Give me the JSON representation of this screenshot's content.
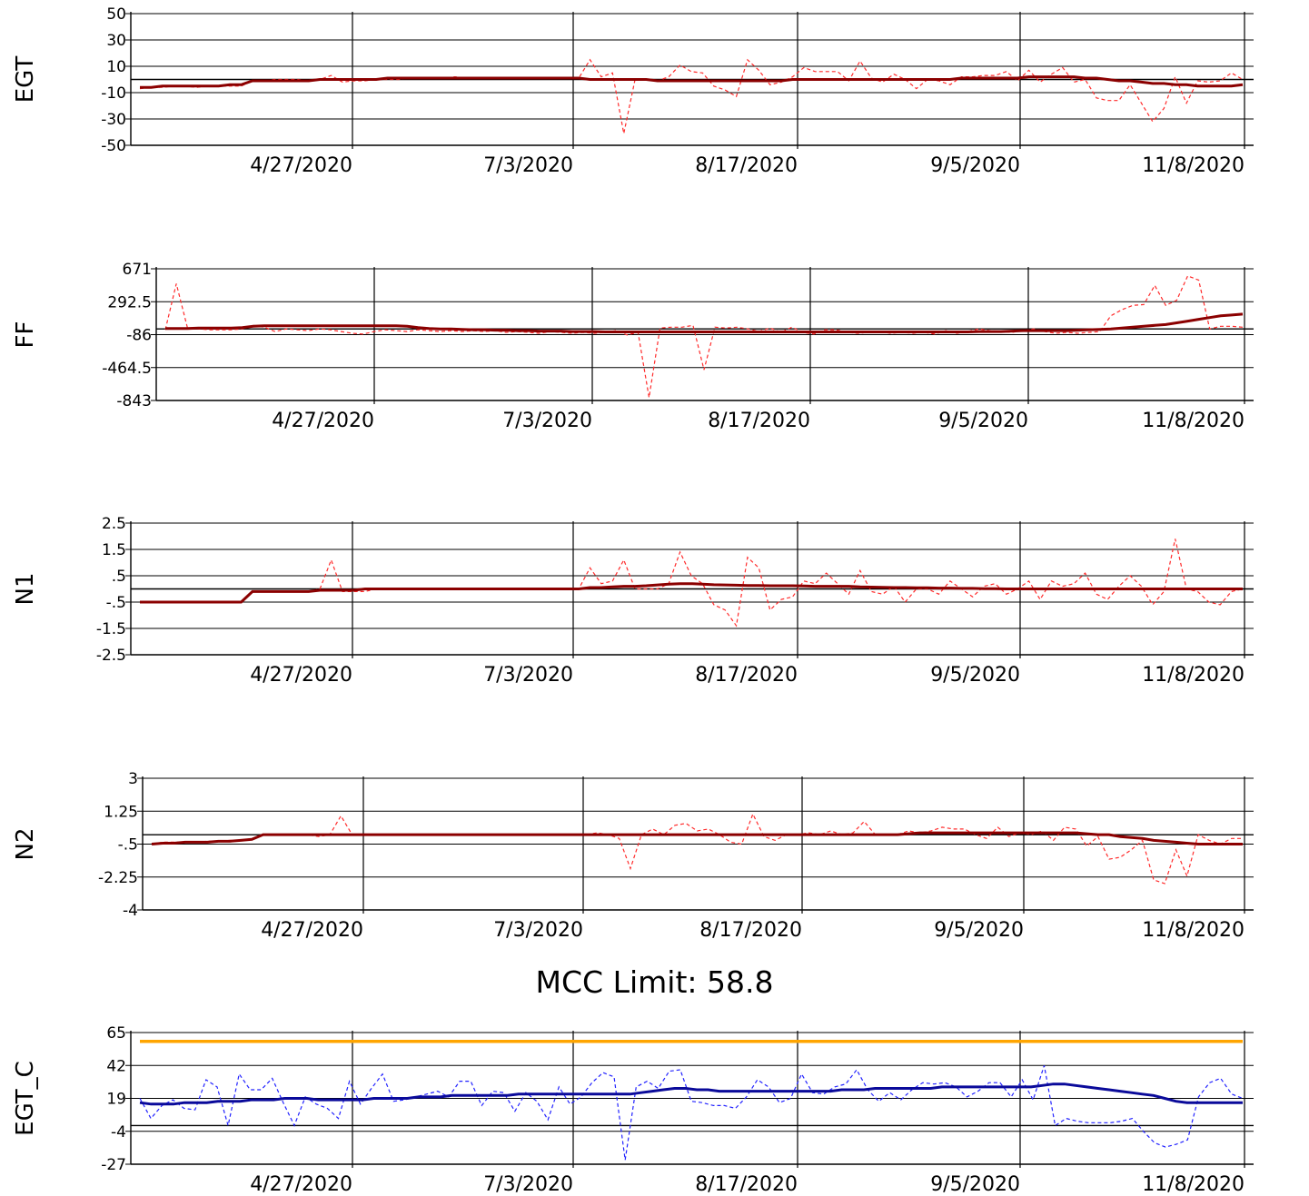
{
  "colors": {
    "raw": "#ff2b2b",
    "smooth": "#8b0000",
    "egtc_raw": "#2222ff",
    "egtc_smooth": "#0a0a9a",
    "limit": "#ffa500",
    "grid": "#000000"
  },
  "mcc_title": "MCC Limit: 58.8",
  "chart_data": [
    {
      "type": "line",
      "ylabel": "EGT",
      "ylim": [
        -50,
        50
      ],
      "yticks": [
        "50",
        "30",
        "10",
        "-10",
        "-30",
        "-50"
      ],
      "xticks": [
        "4/27/2020",
        "7/3/2020",
        "8/17/2020",
        "9/5/2020",
        "11/8/2020"
      ],
      "extra_hlines": [
        0
      ],
      "series": [
        {
          "role": "raw",
          "values": [
            -7,
            -6,
            -6,
            -5,
            -5,
            -6,
            -5,
            -5,
            -5,
            -5,
            -1,
            -1,
            0,
            0,
            0,
            -1,
            0,
            3,
            -2,
            -1,
            -1,
            0,
            0,
            0,
            1,
            1,
            1,
            1,
            2,
            1,
            1,
            1,
            1,
            1,
            1,
            1,
            1,
            1,
            1,
            1,
            15,
            2,
            5,
            -41,
            0,
            0,
            -1,
            2,
            11,
            6,
            5,
            -5,
            -8,
            -13,
            15,
            7,
            -4,
            -2,
            2,
            9,
            6,
            6,
            6,
            -1,
            14,
            1,
            -2,
            4,
            0,
            -7,
            0,
            -1,
            -4,
            2,
            2,
            3,
            3,
            6,
            -1,
            7,
            -2,
            4,
            9,
            -2,
            0,
            -14,
            -16,
            -16,
            -4,
            -18,
            -32,
            -22,
            2,
            -18,
            -1,
            -2,
            -1,
            5,
            0
          ]
        },
        {
          "role": "smooth",
          "values": [
            -6,
            -6,
            -5,
            -5,
            -5,
            -5,
            -5,
            -5,
            -4,
            -4,
            -1,
            -1,
            -1,
            -1,
            -1,
            -1,
            0,
            0,
            0,
            0,
            0,
            0,
            1,
            1,
            1,
            1,
            1,
            1,
            1,
            1,
            1,
            1,
            1,
            1,
            1,
            1,
            1,
            1,
            1,
            1,
            0,
            0,
            0,
            0,
            0,
            0,
            -1,
            -1,
            -1,
            -1,
            -1,
            -1,
            -1,
            -1,
            -1,
            -1,
            -1,
            -1,
            0,
            0,
            0,
            0,
            0,
            0,
            0,
            0,
            0,
            0,
            0,
            0,
            0,
            0,
            0,
            1,
            1,
            1,
            1,
            1,
            1,
            2,
            2,
            2,
            2,
            2,
            1,
            1,
            0,
            -1,
            -1,
            -2,
            -3,
            -3,
            -4,
            -4,
            -5,
            -5,
            -5,
            -5,
            -4
          ]
        }
      ]
    },
    {
      "type": "line",
      "ylabel": "FF",
      "ylim": [
        -843,
        671
      ],
      "yticks": [
        "671",
        "292.5",
        "-86",
        "-464.5",
        "-843"
      ],
      "xticks": [
        "4/27/2020",
        "7/3/2020",
        "8/17/2020",
        "9/5/2020",
        "11/8/2020"
      ],
      "extra_hlines": [
        -20
      ],
      "series": [
        {
          "role": "raw",
          "values": [
            -30,
            500,
            0,
            -20,
            -30,
            -30,
            -30,
            -20,
            20,
            0,
            -50,
            -20,
            -30,
            -40,
            -20,
            -30,
            -50,
            -70,
            -80,
            -50,
            -30,
            -40,
            -50,
            -30,
            -40,
            -50,
            -40,
            -50,
            -40,
            -50,
            -40,
            -60,
            -50,
            -60,
            -70,
            -50,
            -60,
            -70,
            -60,
            -70,
            -60,
            -40,
            -90,
            -60,
            -810,
            -10,
            0,
            0,
            20,
            -490,
            0,
            -10,
            0,
            -20,
            -50,
            -10,
            -60,
            0,
            -60,
            -80,
            -30,
            -30,
            -60,
            -70,
            -60,
            -50,
            -70,
            -60,
            -70,
            -60,
            -80,
            -40,
            -70,
            -50,
            -20,
            -40,
            -50,
            -60,
            -40,
            -20,
            -50,
            -70,
            -60,
            -70,
            -60,
            -50,
            130,
            200,
            250,
            260,
            480,
            250,
            310,
            590,
            540,
            -20,
            10,
            10,
            0
          ]
        },
        {
          "role": "smooth",
          "values": [
            -15,
            -15,
            -15,
            -10,
            -10,
            -10,
            -10,
            -5,
            10,
            15,
            15,
            15,
            15,
            15,
            15,
            15,
            15,
            15,
            15,
            15,
            15,
            15,
            10,
            -5,
            -15,
            -20,
            -20,
            -25,
            -30,
            -30,
            -35,
            -35,
            -40,
            -40,
            -45,
            -45,
            -45,
            -50,
            -50,
            -50,
            -55,
            -55,
            -55,
            -55,
            -55,
            -55,
            -55,
            -55,
            -55,
            -55,
            -55,
            -55,
            -55,
            -55,
            -55,
            -55,
            -55,
            -55,
            -55,
            -55,
            -55,
            -55,
            -55,
            -55,
            -55,
            -55,
            -55,
            -55,
            -55,
            -55,
            -55,
            -55,
            -55,
            -55,
            -50,
            -50,
            -50,
            -45,
            -40,
            -40,
            -40,
            -40,
            -40,
            -35,
            -30,
            -25,
            -20,
            -10,
            0,
            10,
            20,
            30,
            50,
            70,
            90,
            110,
            130,
            140,
            150
          ]
        }
      ]
    },
    {
      "type": "line",
      "ylabel": "N1",
      "ylim": [
        -2.5,
        2.5
      ],
      "yticks": [
        "2.5",
        "1.5",
        ".5",
        "-.5",
        "-1.5",
        "-2.5"
      ],
      "xticks": [
        "4/27/2020",
        "7/3/2020",
        "8/17/2020",
        "9/5/2020",
        "11/8/2020"
      ],
      "extra_hlines": [
        0
      ],
      "series": [
        {
          "role": "raw",
          "values": [
            -0.5,
            -0.5,
            -0.5,
            -0.5,
            -0.5,
            -0.5,
            -0.5,
            -0.5,
            -0.5,
            -0.5,
            -0.1,
            -0.1,
            -0.1,
            -0.1,
            -0.1,
            -0.1,
            0,
            1.1,
            -0.1,
            -0.1,
            -0.1,
            0,
            0,
            0,
            0,
            0,
            0,
            0,
            0,
            0,
            0,
            0,
            0,
            0,
            0,
            0,
            0,
            0,
            0,
            0,
            0.8,
            0.2,
            0.3,
            1.1,
            0,
            0,
            0,
            0.2,
            1.4,
            0.5,
            0.2,
            -0.6,
            -0.8,
            -1.4,
            1.2,
            0.8,
            -0.8,
            -0.4,
            -0.3,
            0.3,
            0.2,
            0.6,
            0.2,
            -0.2,
            0.7,
            -0.1,
            -0.2,
            0.1,
            -0.5,
            0,
            0,
            -0.2,
            0.3,
            0,
            -0.3,
            0.1,
            0.2,
            -0.2,
            0,
            0.3,
            -0.4,
            0.3,
            0.1,
            0.2,
            0.6,
            -0.2,
            -0.4,
            0.1,
            0.5,
            0.1,
            -0.6,
            -0.1,
            1.9,
            0,
            -0.1,
            -0.5,
            -0.6,
            -0.1,
            0
          ]
        },
        {
          "role": "smooth",
          "values": [
            -0.5,
            -0.5,
            -0.5,
            -0.5,
            -0.5,
            -0.5,
            -0.5,
            -0.5,
            -0.5,
            -0.5,
            -0.1,
            -0.1,
            -0.1,
            -0.1,
            -0.1,
            -0.1,
            -0.05,
            -0.05,
            -0.05,
            -0.05,
            0,
            0,
            0,
            0,
            0,
            0,
            0,
            0,
            0,
            0,
            0,
            0,
            0,
            0,
            0,
            0,
            0,
            0,
            0,
            0,
            0.05,
            0.05,
            0.08,
            0.1,
            0.1,
            0.12,
            0.15,
            0.18,
            0.2,
            0.2,
            0.18,
            0.16,
            0.15,
            0.14,
            0.13,
            0.13,
            0.12,
            0.12,
            0.12,
            0.11,
            0.1,
            0.1,
            0.1,
            0.1,
            0.08,
            0.07,
            0.06,
            0.05,
            0.05,
            0.04,
            0.04,
            0.03,
            0.03,
            0.02,
            0.02,
            0.01,
            0.01,
            0,
            0,
            0,
            0,
            0,
            0,
            0,
            0,
            0,
            0,
            0,
            0,
            0,
            0,
            0,
            0,
            0,
            0,
            0,
            0,
            0,
            0
          ]
        }
      ]
    },
    {
      "type": "line",
      "ylabel": "N2",
      "ylim": [
        -4,
        3
      ],
      "yticks": [
        "3",
        "1.25",
        "-.5",
        "-2.25",
        "-4"
      ],
      "xticks": [
        "4/27/2020",
        "7/3/2020",
        "8/17/2020",
        "9/5/2020",
        "11/8/2020"
      ],
      "extra_hlines": [
        0
      ],
      "series": [
        {
          "role": "raw",
          "values": [
            -0.5,
            -0.4,
            -0.4,
            -0.4,
            -0.4,
            -0.35,
            -0.35,
            -0.3,
            -0.3,
            -0.2,
            0,
            0,
            0,
            0,
            0,
            -0.1,
            0,
            1.0,
            0,
            0,
            0,
            0,
            0,
            0,
            0,
            0,
            0,
            0,
            0,
            0,
            0,
            0,
            0,
            0,
            0,
            0,
            0,
            0,
            0,
            0,
            0.1,
            0,
            -0.2,
            -1.8,
            0,
            0.3,
            0,
            0.5,
            0.6,
            0.2,
            0.3,
            0,
            -0.4,
            -0.5,
            1.1,
            -0.1,
            -0.3,
            0,
            0,
            0.1,
            0,
            0.2,
            0,
            0.1,
            0.7,
            0,
            0,
            0,
            0.2,
            0.1,
            0.2,
            0.4,
            0.3,
            0.3,
            0,
            -0.2,
            0.4,
            -0.1,
            0.1,
            0,
            0.2,
            -0.3,
            0.4,
            0.3,
            -0.6,
            -0.1,
            -1.3,
            -1.2,
            -0.8,
            -0.3,
            -2.4,
            -2.6,
            -0.8,
            -2.2,
            0,
            -0.3,
            -0.5,
            -0.2,
            -0.2
          ]
        },
        {
          "role": "smooth",
          "values": [
            -0.5,
            -0.45,
            -0.45,
            -0.4,
            -0.4,
            -0.4,
            -0.35,
            -0.35,
            -0.3,
            -0.25,
            0,
            0,
            0,
            0,
            0,
            0,
            0,
            0,
            0,
            0,
            0,
            0,
            0,
            0,
            0,
            0,
            0,
            0,
            0,
            0,
            0,
            0,
            0,
            0,
            0,
            0,
            0,
            0,
            0,
            0,
            0,
            0,
            0,
            0,
            0,
            0,
            0,
            0,
            0,
            0,
            0,
            0,
            0,
            0,
            0,
            0,
            0,
            0,
            0,
            0,
            0,
            0,
            0,
            0,
            0,
            0,
            0,
            0,
            0.05,
            0.1,
            0.1,
            0.1,
            0.1,
            0.1,
            0.1,
            0.1,
            0.1,
            0.1,
            0.1,
            0.1,
            0.1,
            0.1,
            0.1,
            0.1,
            0.05,
            0,
            0,
            -0.1,
            -0.15,
            -0.2,
            -0.3,
            -0.35,
            -0.4,
            -0.45,
            -0.5,
            -0.5,
            -0.5,
            -0.5,
            -0.5
          ]
        }
      ]
    },
    {
      "type": "line",
      "ylabel": "EGT_C",
      "ylim": [
        -27,
        65
      ],
      "yticks": [
        "65",
        "42",
        "19",
        "-4",
        "-27"
      ],
      "xticks": [
        "4/27/2020",
        "7/3/2020",
        "8/17/2020",
        "9/5/2020",
        "11/8/2020"
      ],
      "extra_hlines": [
        0
      ],
      "limit": 58.8,
      "series": [
        {
          "role": "raw",
          "values": [
            19,
            5,
            14,
            18,
            12,
            11,
            32,
            27,
            0,
            36,
            25,
            25,
            33,
            16,
            0,
            20,
            15,
            12,
            5,
            31,
            15,
            26,
            36,
            17,
            18,
            20,
            22,
            24,
            20,
            31,
            31,
            14,
            24,
            23,
            10,
            23,
            17,
            4,
            27,
            15,
            20,
            30,
            37,
            34,
            -24,
            27,
            31,
            26,
            38,
            39,
            17,
            16,
            14,
            14,
            12,
            20,
            32,
            27,
            16,
            19,
            36,
            23,
            22,
            27,
            29,
            39,
            25,
            17,
            23,
            18,
            25,
            30,
            29,
            30,
            27,
            20,
            24,
            30,
            30,
            20,
            32,
            18,
            42,
            0,
            5,
            3,
            2,
            2,
            2,
            3,
            5,
            -4,
            -12,
            -15,
            -13,
            -10,
            20,
            30,
            33,
            22,
            19
          ]
        },
        {
          "role": "smooth",
          "values": [
            16,
            15,
            15,
            15,
            16,
            16,
            16,
            17,
            17,
            17,
            18,
            18,
            18,
            19,
            19,
            19,
            18,
            18,
            18,
            18,
            18,
            19,
            19,
            19,
            19,
            20,
            20,
            20,
            21,
            21,
            21,
            21,
            21,
            21,
            22,
            22,
            22,
            22,
            22,
            22,
            22,
            22,
            22,
            22,
            22,
            23,
            24,
            25,
            26,
            26,
            25,
            25,
            24,
            24,
            24,
            24,
            24,
            24,
            24,
            24,
            24,
            24,
            24,
            25,
            25,
            25,
            26,
            26,
            26,
            26,
            26,
            26,
            27,
            27,
            27,
            27,
            27,
            27,
            27,
            27,
            27,
            28,
            29,
            29,
            28,
            27,
            26,
            25,
            24,
            23,
            22,
            21,
            19,
            17,
            16,
            16,
            16,
            16,
            16,
            16
          ]
        },
        {
          "role": "limit",
          "values": [
            58.8,
            58.8
          ]
        }
      ]
    }
  ]
}
